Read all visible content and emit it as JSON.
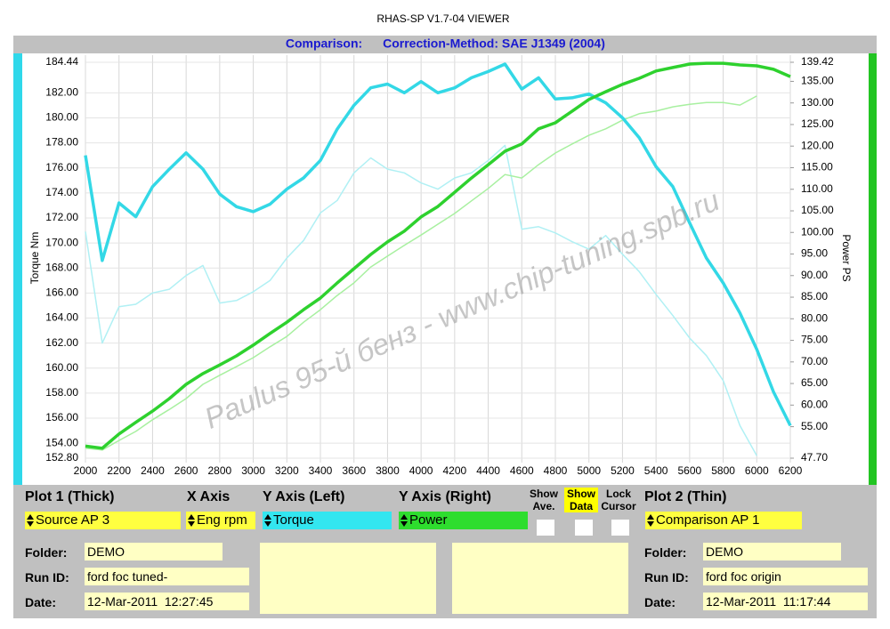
{
  "window_title": "RHAS-SP V1.7-04  VIEWER",
  "header": {
    "comparison": "Comparison:",
    "correction": "Correction-Method: SAE J1349 (2004)"
  },
  "watermark": "Paulus  95-й бенз - www.chip-tuning.spb.ru",
  "chart_data": {
    "type": "line",
    "ylabel": "Torque Nm",
    "y2label": "Power PS",
    "x": [
      2000,
      2100,
      2200,
      2300,
      2400,
      2500,
      2600,
      2700,
      2800,
      2900,
      3000,
      3100,
      3200,
      3300,
      3400,
      3500,
      3600,
      3700,
      3800,
      3900,
      4000,
      4100,
      4200,
      4300,
      4400,
      4500,
      4600,
      4700,
      4800,
      4900,
      5000,
      5100,
      5200,
      5300,
      5400,
      5500,
      5600,
      5700,
      5800,
      5900,
      6000,
      6100,
      6200
    ],
    "xlim": [
      2000,
      6200
    ],
    "xticks": [
      2000,
      2200,
      2400,
      2600,
      2800,
      3000,
      3200,
      3400,
      3600,
      3800,
      4000,
      4200,
      4400,
      4600,
      4800,
      5000,
      5200,
      5400,
      5600,
      5800,
      6000,
      6200
    ],
    "ylim": [
      152.8,
      184.44
    ],
    "yticks": [
      {
        "value": 152.8,
        "label": "152.80"
      },
      {
        "value": 154,
        "label": "154.00"
      },
      {
        "value": 156,
        "label": "156.00"
      },
      {
        "value": 158,
        "label": "158.00"
      },
      {
        "value": 160,
        "label": "160.00"
      },
      {
        "value": 162,
        "label": "162.00"
      },
      {
        "value": 164,
        "label": "164.00"
      },
      {
        "value": 166,
        "label": "166.00"
      },
      {
        "value": 168,
        "label": "168.00"
      },
      {
        "value": 170,
        "label": "170.00"
      },
      {
        "value": 172,
        "label": "172.00"
      },
      {
        "value": 174,
        "label": "174.00"
      },
      {
        "value": 176,
        "label": "176.00"
      },
      {
        "value": 178,
        "label": "178.00"
      },
      {
        "value": 180,
        "label": "180.00"
      },
      {
        "value": 182,
        "label": "182.00"
      },
      {
        "value": 184.44,
        "label": "184.44"
      }
    ],
    "y2lim": [
      47.7,
      139.42
    ],
    "y2ticks": [
      {
        "value": 47.7,
        "label": "47.70"
      },
      {
        "value": 55,
        "label": "55.00"
      },
      {
        "value": 60,
        "label": "60.00"
      },
      {
        "value": 65,
        "label": "65.00"
      },
      {
        "value": 70,
        "label": "70.00"
      },
      {
        "value": 75,
        "label": "75.00"
      },
      {
        "value": 80,
        "label": "80.00"
      },
      {
        "value": 85,
        "label": "85.00"
      },
      {
        "value": 90,
        "label": "90.00"
      },
      {
        "value": 95,
        "label": "95.00"
      },
      {
        "value": 100,
        "label": "100.00"
      },
      {
        "value": 105,
        "label": "105.00"
      },
      {
        "value": 110,
        "label": "110.00"
      },
      {
        "value": 115,
        "label": "115.00"
      },
      {
        "value": 120,
        "label": "120.00"
      },
      {
        "value": 125,
        "label": "125.00"
      },
      {
        "value": 130,
        "label": "130.00"
      },
      {
        "value": 135,
        "label": "135.00"
      },
      {
        "value": 139.42,
        "label": "139.42"
      }
    ],
    "grid": true,
    "series": [
      {
        "color": "#b0f0f4",
        "width": 1.5,
        "axis": "y",
        "values": [
          170.9,
          162.0,
          164.9,
          165.1,
          166.0,
          166.3,
          167.4,
          168.2,
          165.2,
          165.4,
          166.1,
          167.0,
          168.8,
          170.2,
          172.4,
          173.4,
          175.6,
          176.8,
          175.9,
          175.6,
          174.8,
          174.3,
          175.2,
          175.6,
          176.6,
          177.8,
          171.1,
          171.3,
          170.8,
          170.1,
          169.5,
          170.6,
          169.1,
          167.7,
          165.9,
          164.2,
          162.4,
          161.0,
          159.0,
          155.4,
          153.0,
          null,
          null
        ]
      },
      {
        "color": "#a8f0a0",
        "width": 1.5,
        "axis": "y2",
        "values": [
          50.0,
          49.6,
          51.8,
          53.9,
          56.6,
          59.0,
          61.5,
          64.8,
          66.9,
          68.9,
          71.0,
          73.5,
          75.9,
          79.2,
          82.1,
          85.4,
          88.3,
          92.0,
          94.5,
          97.0,
          99.4,
          101.9,
          104.4,
          107.3,
          110.2,
          113.4,
          112.6,
          115.7,
          118.4,
          120.5,
          122.5,
          124.0,
          126.0,
          127.5,
          128.1,
          129.1,
          129.7,
          130.1,
          130.1,
          129.5,
          131.6,
          null,
          null
        ]
      },
      {
        "color": "#33d8e6",
        "width": 3.5,
        "axis": "y",
        "values": [
          177.0,
          168.6,
          173.2,
          172.1,
          174.5,
          175.9,
          177.2,
          175.9,
          173.9,
          172.9,
          172.5,
          173.1,
          174.3,
          175.2,
          176.6,
          179.1,
          181.0,
          182.4,
          182.7,
          182.0,
          182.9,
          182.0,
          182.4,
          183.2,
          183.7,
          184.3,
          182.3,
          183.2,
          181.5,
          181.6,
          181.9,
          181.2,
          180.0,
          178.4,
          176.1,
          174.5,
          171.6,
          168.8,
          166.8,
          164.4,
          161.5,
          158.1,
          155.4
        ]
      },
      {
        "color": "#2ed12e",
        "width": 3.5,
        "axis": "y2",
        "values": [
          50.5,
          50.0,
          53.3,
          56.0,
          58.6,
          61.5,
          64.8,
          67.3,
          69.3,
          71.4,
          73.9,
          76.6,
          79.2,
          82.1,
          84.8,
          88.3,
          91.6,
          94.9,
          97.8,
          100.3,
          103.6,
          106.0,
          109.3,
          112.6,
          115.7,
          118.8,
          120.5,
          124.0,
          125.4,
          128.1,
          130.8,
          132.6,
          134.3,
          135.7,
          137.4,
          138.2,
          139.0,
          139.2,
          139.2,
          138.8,
          138.6,
          137.8,
          136.1
        ]
      }
    ]
  },
  "panel": {
    "headings": {
      "plot1": "Plot 1 (Thick)",
      "x_axis": "X Axis",
      "y_left": "Y Axis (Left)",
      "y_right": "Y Axis (Right)",
      "show_ave": "Show Ave.",
      "show_data": "Show Data",
      "lock_cursor": "Lock Cursor",
      "plot2": "Plot 2 (Thin)"
    },
    "selectors": {
      "plot1": "Source AP 3",
      "x_axis": "Eng rpm",
      "y_left": "Torque",
      "y_right": "Power",
      "plot2": "Comparison AP 1"
    },
    "plot1_info": {
      "folder_label": "Folder:",
      "folder": "DEMO",
      "run_label": "Run ID:",
      "run": "ford foc tuned-",
      "date_label": "Date:",
      "date": "12-Mar-2011  12:27:45"
    },
    "plot2_info": {
      "folder_label": "Folder:",
      "folder": "DEMO",
      "run_label": "Run ID:",
      "run": "ford foc origin",
      "date_label": "Date:",
      "date": "12-Mar-2011  11:17:44"
    }
  }
}
